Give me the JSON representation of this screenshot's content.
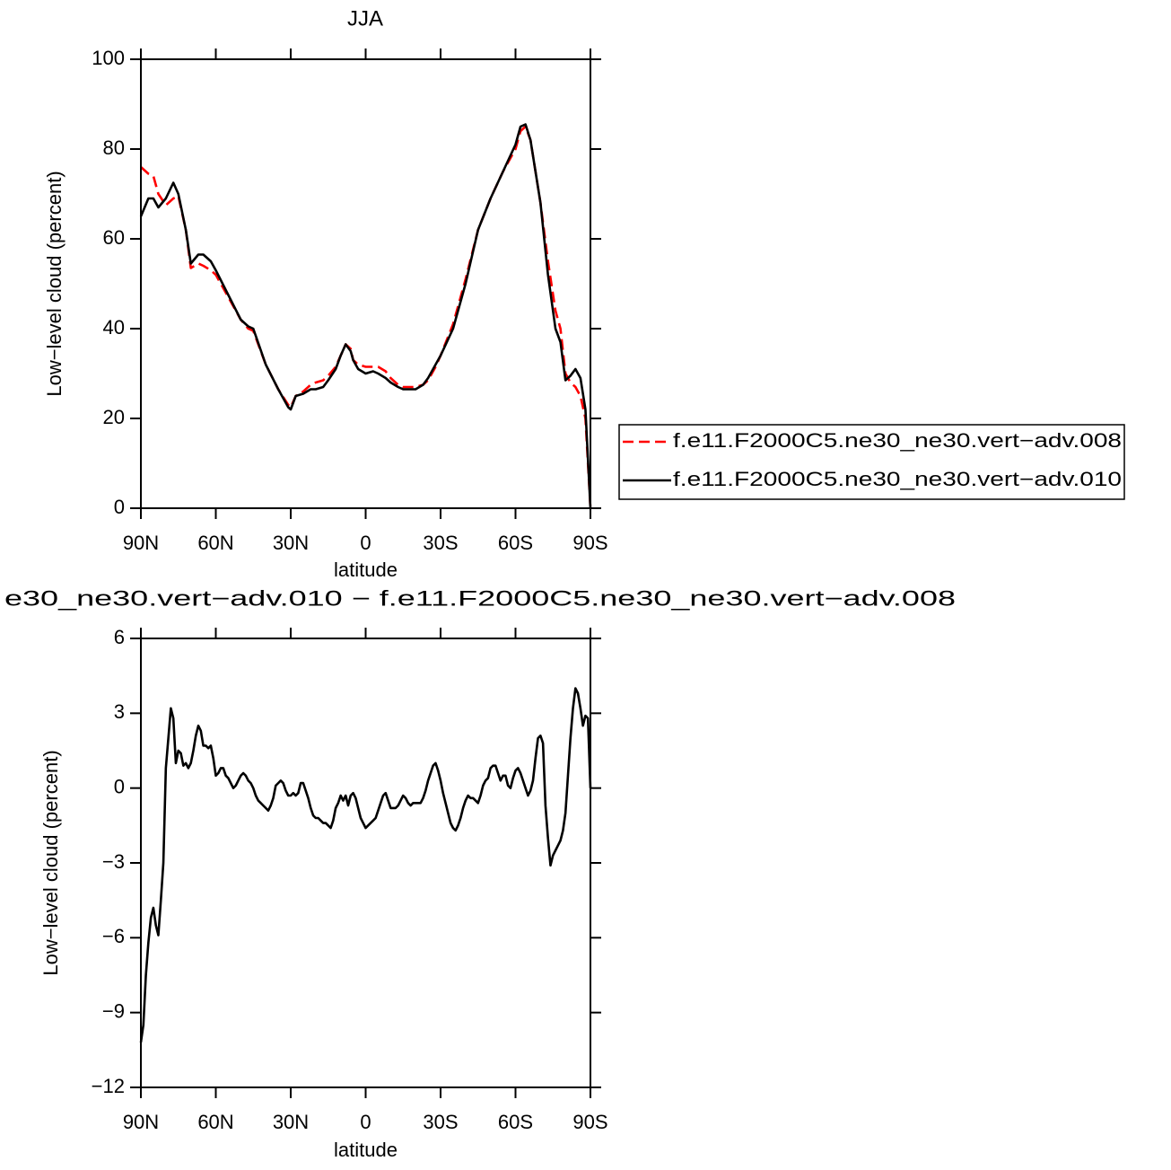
{
  "chart_data": [
    {
      "type": "line",
      "title": "JJA",
      "xlabel": "latitude",
      "ylabel": "Low−level cloud (percent)",
      "x": [
        90,
        87,
        85,
        83,
        80,
        77,
        75,
        72,
        70,
        67,
        65,
        62,
        60,
        55,
        50,
        47,
        45,
        40,
        35,
        31,
        30,
        28,
        25,
        22,
        20,
        17,
        15,
        12,
        10,
        8,
        6,
        5,
        3,
        0,
        -3,
        -5,
        -8,
        -10,
        -13,
        -15,
        -18,
        -20,
        -23,
        -25,
        -28,
        -30,
        -35,
        -40,
        -45,
        -50,
        -55,
        -60,
        -62,
        -64,
        -66,
        -70,
        -73,
        -76,
        -78,
        -80,
        -82,
        -84,
        -86,
        -88,
        -90
      ],
      "series": [
        {
          "name": "f.e11.F2000C5.ne30_ne30.vert−adv.008",
          "color": "#ff0000",
          "dash": true,
          "values": [
            76,
            74.5,
            74,
            70,
            67.5,
            69,
            69.5,
            62,
            53.5,
            54.5,
            54,
            53,
            52,
            47,
            42,
            40,
            39.5,
            32,
            26.5,
            23,
            22.5,
            25,
            26,
            27.5,
            28,
            28.5,
            29.5,
            31.5,
            34,
            36.5,
            35.5,
            33,
            32,
            31.5,
            31.5,
            31.5,
            30.5,
            29,
            27.5,
            27,
            27,
            27,
            27.5,
            28.5,
            31.5,
            34,
            41,
            51,
            62,
            69,
            75,
            80,
            84,
            85,
            82,
            68,
            55,
            44,
            40,
            30,
            28,
            27,
            25,
            20,
            0
          ]
        },
        {
          "name": "f.e11.F2000C5.ne30_ne30.vert−adv.010",
          "color": "#000000",
          "dash": false,
          "values": [
            65,
            69,
            69,
            67,
            69,
            72.5,
            70,
            62,
            54.5,
            56.5,
            56.5,
            55,
            53,
            47.5,
            42,
            40.5,
            40,
            32,
            26.5,
            22.5,
            22,
            25,
            25.5,
            26.5,
            26.5,
            27,
            28.5,
            31,
            34,
            36.5,
            35,
            33,
            31,
            30,
            30.5,
            30,
            29,
            28,
            27,
            26.5,
            26.5,
            26.5,
            27.5,
            29,
            32,
            34,
            40,
            50,
            62,
            69,
            75,
            81,
            85,
            85.5,
            82,
            68,
            52,
            40,
            37,
            28.5,
            29.5,
            31,
            29,
            22,
            0
          ]
        }
      ],
      "xlim": [
        90,
        -90
      ],
      "xticks": [
        {
          "value": 90,
          "label": "90N"
        },
        {
          "value": 60,
          "label": "60N"
        },
        {
          "value": 30,
          "label": "30N"
        },
        0,
        {
          "value": -30,
          "label": "30S"
        },
        {
          "value": -60,
          "label": "60S"
        },
        {
          "value": -90,
          "label": "90S"
        }
      ],
      "ylim": [
        0,
        100
      ],
      "yticks": [
        0,
        20,
        40,
        60,
        80,
        100
      ],
      "legend": "right",
      "grid": false
    },
    {
      "type": "line",
      "title": "e30_ne30.vert−adv.010 − f.e11.F2000C5.ne30_ne30.vert−adv.008",
      "xlabel": "latitude",
      "ylabel": "Low−level cloud (percent)",
      "x": [
        90,
        89,
        88,
        87,
        86,
        85,
        84,
        83,
        82,
        81,
        80,
        79,
        78,
        77,
        76,
        75,
        74,
        73,
        72,
        71,
        70,
        69,
        68,
        67,
        66,
        65,
        64,
        63,
        62,
        61,
        60,
        59,
        58,
        57,
        56,
        55,
        54,
        53,
        52,
        51,
        50,
        49,
        48,
        47,
        46,
        45,
        44,
        43,
        42,
        41,
        40,
        39,
        38,
        37,
        36,
        35,
        34,
        33,
        32,
        31,
        30,
        29,
        28,
        27,
        26,
        25,
        24,
        23,
        22,
        21,
        20,
        19,
        18,
        17,
        16,
        15,
        14,
        13,
        12,
        11,
        10,
        9,
        8,
        7,
        6,
        5,
        4,
        3,
        2,
        1,
        0,
        -1,
        -2,
        -3,
        -4,
        -5,
        -6,
        -7,
        -8,
        -9,
        -10,
        -11,
        -12,
        -13,
        -14,
        -15,
        -16,
        -17,
        -18,
        -19,
        -20,
        -21,
        -22,
        -23,
        -24,
        -25,
        -26,
        -27,
        -28,
        -29,
        -30,
        -31,
        -32,
        -33,
        -34,
        -35,
        -36,
        -37,
        -38,
        -39,
        -40,
        -41,
        -42,
        -43,
        -44,
        -45,
        -46,
        -47,
        -48,
        -49,
        -50,
        -51,
        -52,
        -53,
        -54,
        -55,
        -56,
        -57,
        -58,
        -59,
        -60,
        -61,
        -62,
        -63,
        -64,
        -65,
        -66,
        -67,
        -68,
        -69,
        -70,
        -71,
        -72,
        -73,
        -74,
        -75,
        -76,
        -77,
        -78,
        -79,
        -80,
        -81,
        -82,
        -83,
        -84,
        -85,
        -86,
        -87,
        -88,
        -89,
        -90
      ],
      "color": "#000000",
      "values": [
        -10.2,
        -9.5,
        -7.5,
        -6.2,
        -5.2,
        -4.8,
        -5.5,
        -5.9,
        -4.5,
        -3.0,
        0.8,
        2.0,
        3.2,
        2.8,
        1.0,
        1.5,
        1.4,
        0.9,
        1.0,
        0.8,
        1.0,
        1.5,
        2.1,
        2.5,
        2.3,
        1.7,
        1.7,
        1.6,
        1.7,
        1.2,
        0.5,
        0.6,
        0.8,
        0.8,
        0.5,
        0.4,
        0.2,
        0.0,
        0.1,
        0.3,
        0.5,
        0.6,
        0.5,
        0.3,
        0.2,
        0.0,
        -0.3,
        -0.5,
        -0.6,
        -0.7,
        -0.8,
        -0.9,
        -0.7,
        -0.4,
        0.1,
        0.2,
        0.3,
        0.2,
        -0.1,
        -0.3,
        -0.3,
        -0.2,
        -0.3,
        -0.2,
        0.2,
        0.2,
        -0.1,
        -0.4,
        -0.8,
        -1.1,
        -1.2,
        -1.2,
        -1.3,
        -1.4,
        -1.4,
        -1.5,
        -1.6,
        -1.3,
        -0.8,
        -0.6,
        -0.3,
        -0.5,
        -0.3,
        -0.7,
        -0.3,
        -0.2,
        -0.4,
        -0.8,
        -1.2,
        -1.4,
        -1.6,
        -1.5,
        -1.4,
        -1.3,
        -1.2,
        -0.9,
        -0.6,
        -0.3,
        -0.2,
        -0.5,
        -0.8,
        -0.8,
        -0.8,
        -0.7,
        -0.5,
        -0.3,
        -0.4,
        -0.6,
        -0.7,
        -0.6,
        -0.6,
        -0.6,
        -0.6,
        -0.4,
        -0.1,
        0.3,
        0.6,
        0.9,
        1.0,
        0.7,
        0.3,
        -0.2,
        -0.6,
        -1.0,
        -1.4,
        -1.6,
        -1.7,
        -1.5,
        -1.2,
        -0.8,
        -0.5,
        -0.3,
        -0.4,
        -0.4,
        -0.5,
        -0.6,
        -0.3,
        0.1,
        0.3,
        0.4,
        0.8,
        0.9,
        0.9,
        0.6,
        0.3,
        0.5,
        0.5,
        0.1,
        0.0,
        0.4,
        0.7,
        0.8,
        0.6,
        0.3,
        0.0,
        -0.3,
        -0.1,
        0.3,
        1.2,
        2.0,
        2.1,
        1.8,
        -0.7,
        -2.0,
        -3.1,
        -2.7,
        -2.5,
        -2.3,
        -2.1,
        -1.7,
        -1.0,
        0.5,
        2.0,
        3.2,
        4.0,
        3.8,
        3.2,
        2.5,
        2.9,
        2.8,
        0
      ],
      "xlim": [
        90,
        -90
      ],
      "xticks": [
        {
          "value": 90,
          "label": "90N"
        },
        {
          "value": 60,
          "label": "60N"
        },
        {
          "value": 30,
          "label": "30N"
        },
        0,
        {
          "value": -30,
          "label": "30S"
        },
        {
          "value": -60,
          "label": "60S"
        },
        {
          "value": -90,
          "label": "90S"
        }
      ],
      "ylim": [
        -12,
        6
      ],
      "yticks": [
        {
          "value": -12,
          "label": "−12"
        },
        {
          "value": -9,
          "label": "−9"
        },
        {
          "value": -6,
          "label": "−6"
        },
        {
          "value": -3,
          "label": "−3"
        },
        0,
        3,
        6
      ],
      "grid": false
    }
  ]
}
